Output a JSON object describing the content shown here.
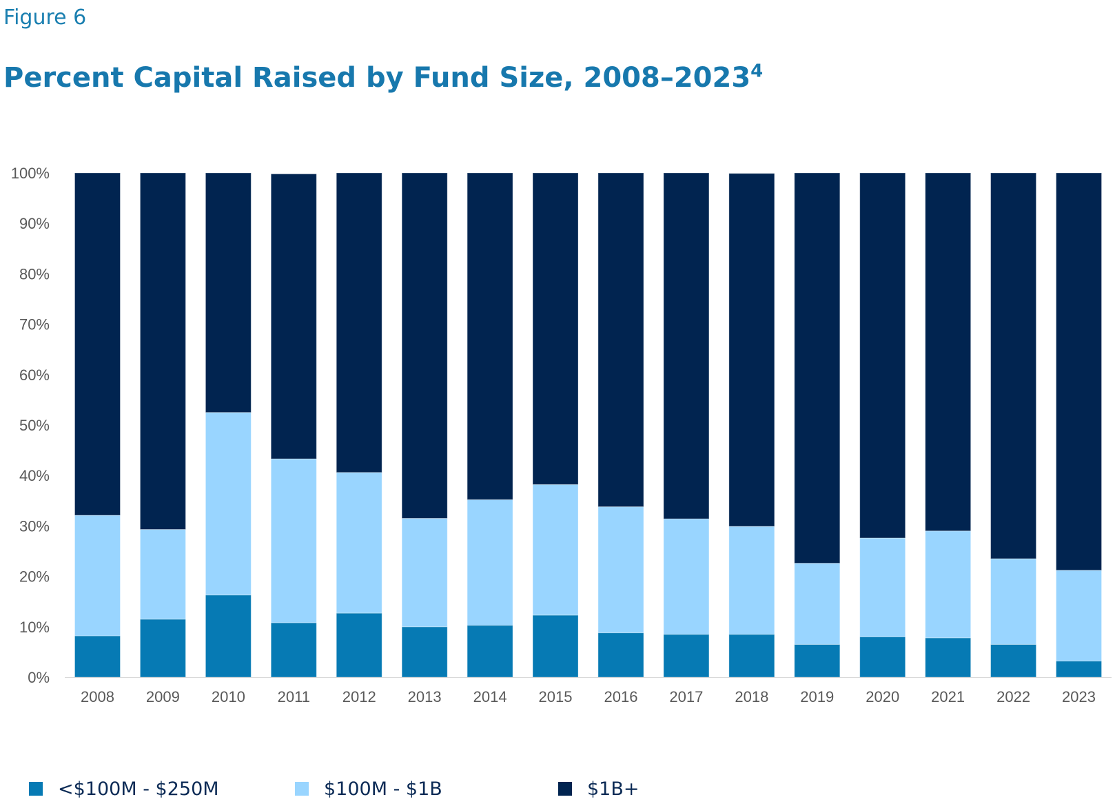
{
  "figure_label": "Figure 6",
  "title": "Percent Capital Raised by Fund Size, 2008–2023",
  "title_superscript": "4",
  "chart_data": {
    "type": "bar",
    "stacked": true,
    "categories": [
      "2008",
      "2009",
      "2010",
      "2011",
      "2012",
      "2013",
      "2014",
      "2015",
      "2016",
      "2017",
      "2018",
      "2019",
      "2020",
      "2021",
      "2022",
      "2023"
    ],
    "series": [
      {
        "name": "<$100M - $250M",
        "color": "#067ab4",
        "values": [
          8.2,
          11.5,
          16.3,
          10.8,
          12.7,
          10.0,
          10.3,
          12.3,
          8.8,
          8.5,
          8.5,
          6.5,
          8.0,
          7.8,
          6.5,
          3.2
        ]
      },
      {
        "name": "$100M - $1B",
        "color": "#99d5ff",
        "values": [
          23.9,
          17.8,
          36.2,
          32.5,
          27.9,
          21.5,
          24.9,
          25.9,
          25.0,
          22.9,
          21.4,
          16.1,
          19.6,
          21.2,
          17.0,
          18.0
        ]
      },
      {
        "name": "$1B+",
        "color": "#012450",
        "values": [
          67.9,
          70.7,
          47.5,
          56.5,
          59.4,
          68.5,
          64.8,
          61.8,
          66.2,
          68.6,
          70.0,
          77.4,
          72.4,
          71.0,
          76.5,
          78.8
        ]
      }
    ],
    "yticks": [
      "0%",
      "10%",
      "20%",
      "30%",
      "40%",
      "50%",
      "60%",
      "70%",
      "80%",
      "90%",
      "100%"
    ],
    "ylim": [
      0,
      100
    ],
    "legend_position": "bottom",
    "grid": false
  }
}
